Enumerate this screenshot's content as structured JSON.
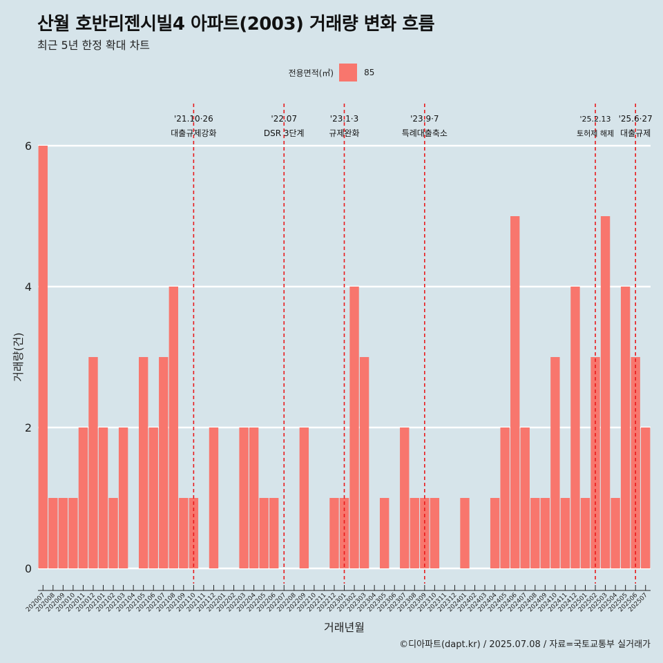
{
  "title": "산월 호반리젠시빌4 아파트(2003) 거래량 변화 흐름",
  "subtitle": "최근 5년 한정 확대 차트",
  "legend": {
    "title": "전용면적(㎡)",
    "item": "85"
  },
  "caption": "©디아파트(dapt.kr) / 2025.07.08 / 자료=국토교통부 실거래가",
  "colors": {
    "background": "#d6e4ea",
    "bar": "#f8766d",
    "grid": "#ffffff",
    "event_line": "#e8191b"
  },
  "chart_data": {
    "type": "bar",
    "xlabel": "거래년월",
    "ylabel": "거래량(건)",
    "ylim": [
      0,
      6
    ],
    "yticks": [
      0,
      2,
      4,
      6
    ],
    "grid": true,
    "legend_position": "top",
    "categories": [
      "202007",
      "202008",
      "202009",
      "202010",
      "202011",
      "202012",
      "202101",
      "202102",
      "202103",
      "202104",
      "202105",
      "202106",
      "202107",
      "202108",
      "202109",
      "202110",
      "202111",
      "202112",
      "202201",
      "202202",
      "202203",
      "202204",
      "202205",
      "202206",
      "202207",
      "202208",
      "202209",
      "202210",
      "202211",
      "202212",
      "202301",
      "202302",
      "202303",
      "202304",
      "202305",
      "202306",
      "202307",
      "202308",
      "202309",
      "202310",
      "202311",
      "202312",
      "202401",
      "202402",
      "202403",
      "202404",
      "202405",
      "202406",
      "202407",
      "202408",
      "202409",
      "202410",
      "202411",
      "202412",
      "202501",
      "202502",
      "202503",
      "202504",
      "202505",
      "202506",
      "202507"
    ],
    "series": [
      {
        "name": "85",
        "values": [
          6,
          1,
          1,
          1,
          2,
          3,
          2,
          1,
          2,
          0,
          3,
          2,
          3,
          4,
          1,
          1,
          0,
          2,
          0,
          0,
          2,
          2,
          1,
          1,
          0,
          0,
          2,
          0,
          0,
          1,
          1,
          4,
          3,
          0,
          1,
          0,
          2,
          1,
          1,
          1,
          0,
          0,
          1,
          0,
          0,
          1,
          2,
          5,
          2,
          1,
          1,
          3,
          1,
          4,
          1,
          3,
          5,
          1,
          4,
          3,
          2
        ]
      }
    ],
    "events": [
      {
        "x": "202110",
        "label_top": "'21.10·26",
        "label_bottom": "대출규제강화"
      },
      {
        "x": "202207",
        "label_top": "'22.07",
        "label_bottom": "DSR 3단계"
      },
      {
        "x": "202301",
        "label_top": "'23.1·3",
        "label_bottom": "규제완화"
      },
      {
        "x": "202309",
        "label_top": "'23.9·7",
        "label_bottom": "특례대출축소"
      },
      {
        "x": "202502",
        "label_top": "'25.2.13",
        "label_bottom": "토허제 해제"
      },
      {
        "x": "202506",
        "label_top": "'25.6·27",
        "label_bottom": "대출규제"
      }
    ]
  }
}
